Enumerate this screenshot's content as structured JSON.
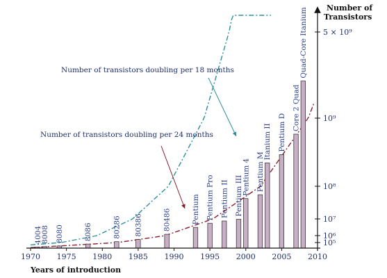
{
  "chart_data": {
    "type": "bar",
    "xlabel": "Years of introduction",
    "ylabel": "Number of Transistors",
    "x_ticks": [
      1970,
      1975,
      1980,
      1985,
      1990,
      1995,
      2000,
      2005,
      2010
    ],
    "xlim": [
      1970,
      2010
    ],
    "y_ticks": [
      {
        "value": 100000,
        "label": "10⁵"
      },
      {
        "value": 1000000,
        "label": "10⁶"
      },
      {
        "value": 10000000,
        "label": "10⁷"
      },
      {
        "value": 100000000,
        "label": "10⁸"
      },
      {
        "value": 1000000000,
        "label": "10⁹"
      },
      {
        "value": 5000000000,
        "label": "5 × 10⁹"
      }
    ],
    "ylim": [
      0,
      6200000000
    ],
    "y_scale": "piecewise (compressed at low values)",
    "bars": [
      {
        "name": "4004",
        "year": 1971,
        "value": 2300
      },
      {
        "name": "8008",
        "year": 1972,
        "value": 3500
      },
      {
        "name": "8080",
        "year": 1974,
        "value": 6000
      },
      {
        "name": "8086",
        "year": 1978,
        "value": 29000
      },
      {
        "name": "80286",
        "year": 1982,
        "value": 134000
      },
      {
        "name": "80386",
        "year": 1985,
        "value": 275000
      },
      {
        "name": "80486",
        "year": 1989,
        "value": 1200000
      },
      {
        "name": "Pentium",
        "year": 1993,
        "value": 3100000
      },
      {
        "name": "Pentium Pro",
        "year": 1995,
        "value": 5500000
      },
      {
        "name": "Pentium II",
        "year": 1997,
        "value": 7500000
      },
      {
        "name": "Pentium III",
        "year": 1999,
        "value": 9500000
      },
      {
        "name": "Pentium 4",
        "year": 2000,
        "value": 42000000
      },
      {
        "name": "Pentium M",
        "year": 2002,
        "value": 55000000
      },
      {
        "name": "Itanium II",
        "year": 2003,
        "value": 220000000
      },
      {
        "name": "Pentium D",
        "year": 2005,
        "value": 291000000
      },
      {
        "name": "Core 2 Quad",
        "year": 2007,
        "value": 582000000
      },
      {
        "name": "Quad-Core Itanium",
        "year": 2008,
        "value": 2000000000
      }
    ],
    "trend_lines": [
      {
        "label": "Number of transistors doubling per 18 months",
        "color": "#2a8f9a",
        "doubling_months": 18
      },
      {
        "label": "Number of transistors doubling per 24 months",
        "color": "#8b1a2a",
        "doubling_months": 24
      }
    ],
    "colors": {
      "bar_fill": "#c9afc6",
      "bar_stroke": "#3a3a3a",
      "axis": "#111111"
    }
  }
}
